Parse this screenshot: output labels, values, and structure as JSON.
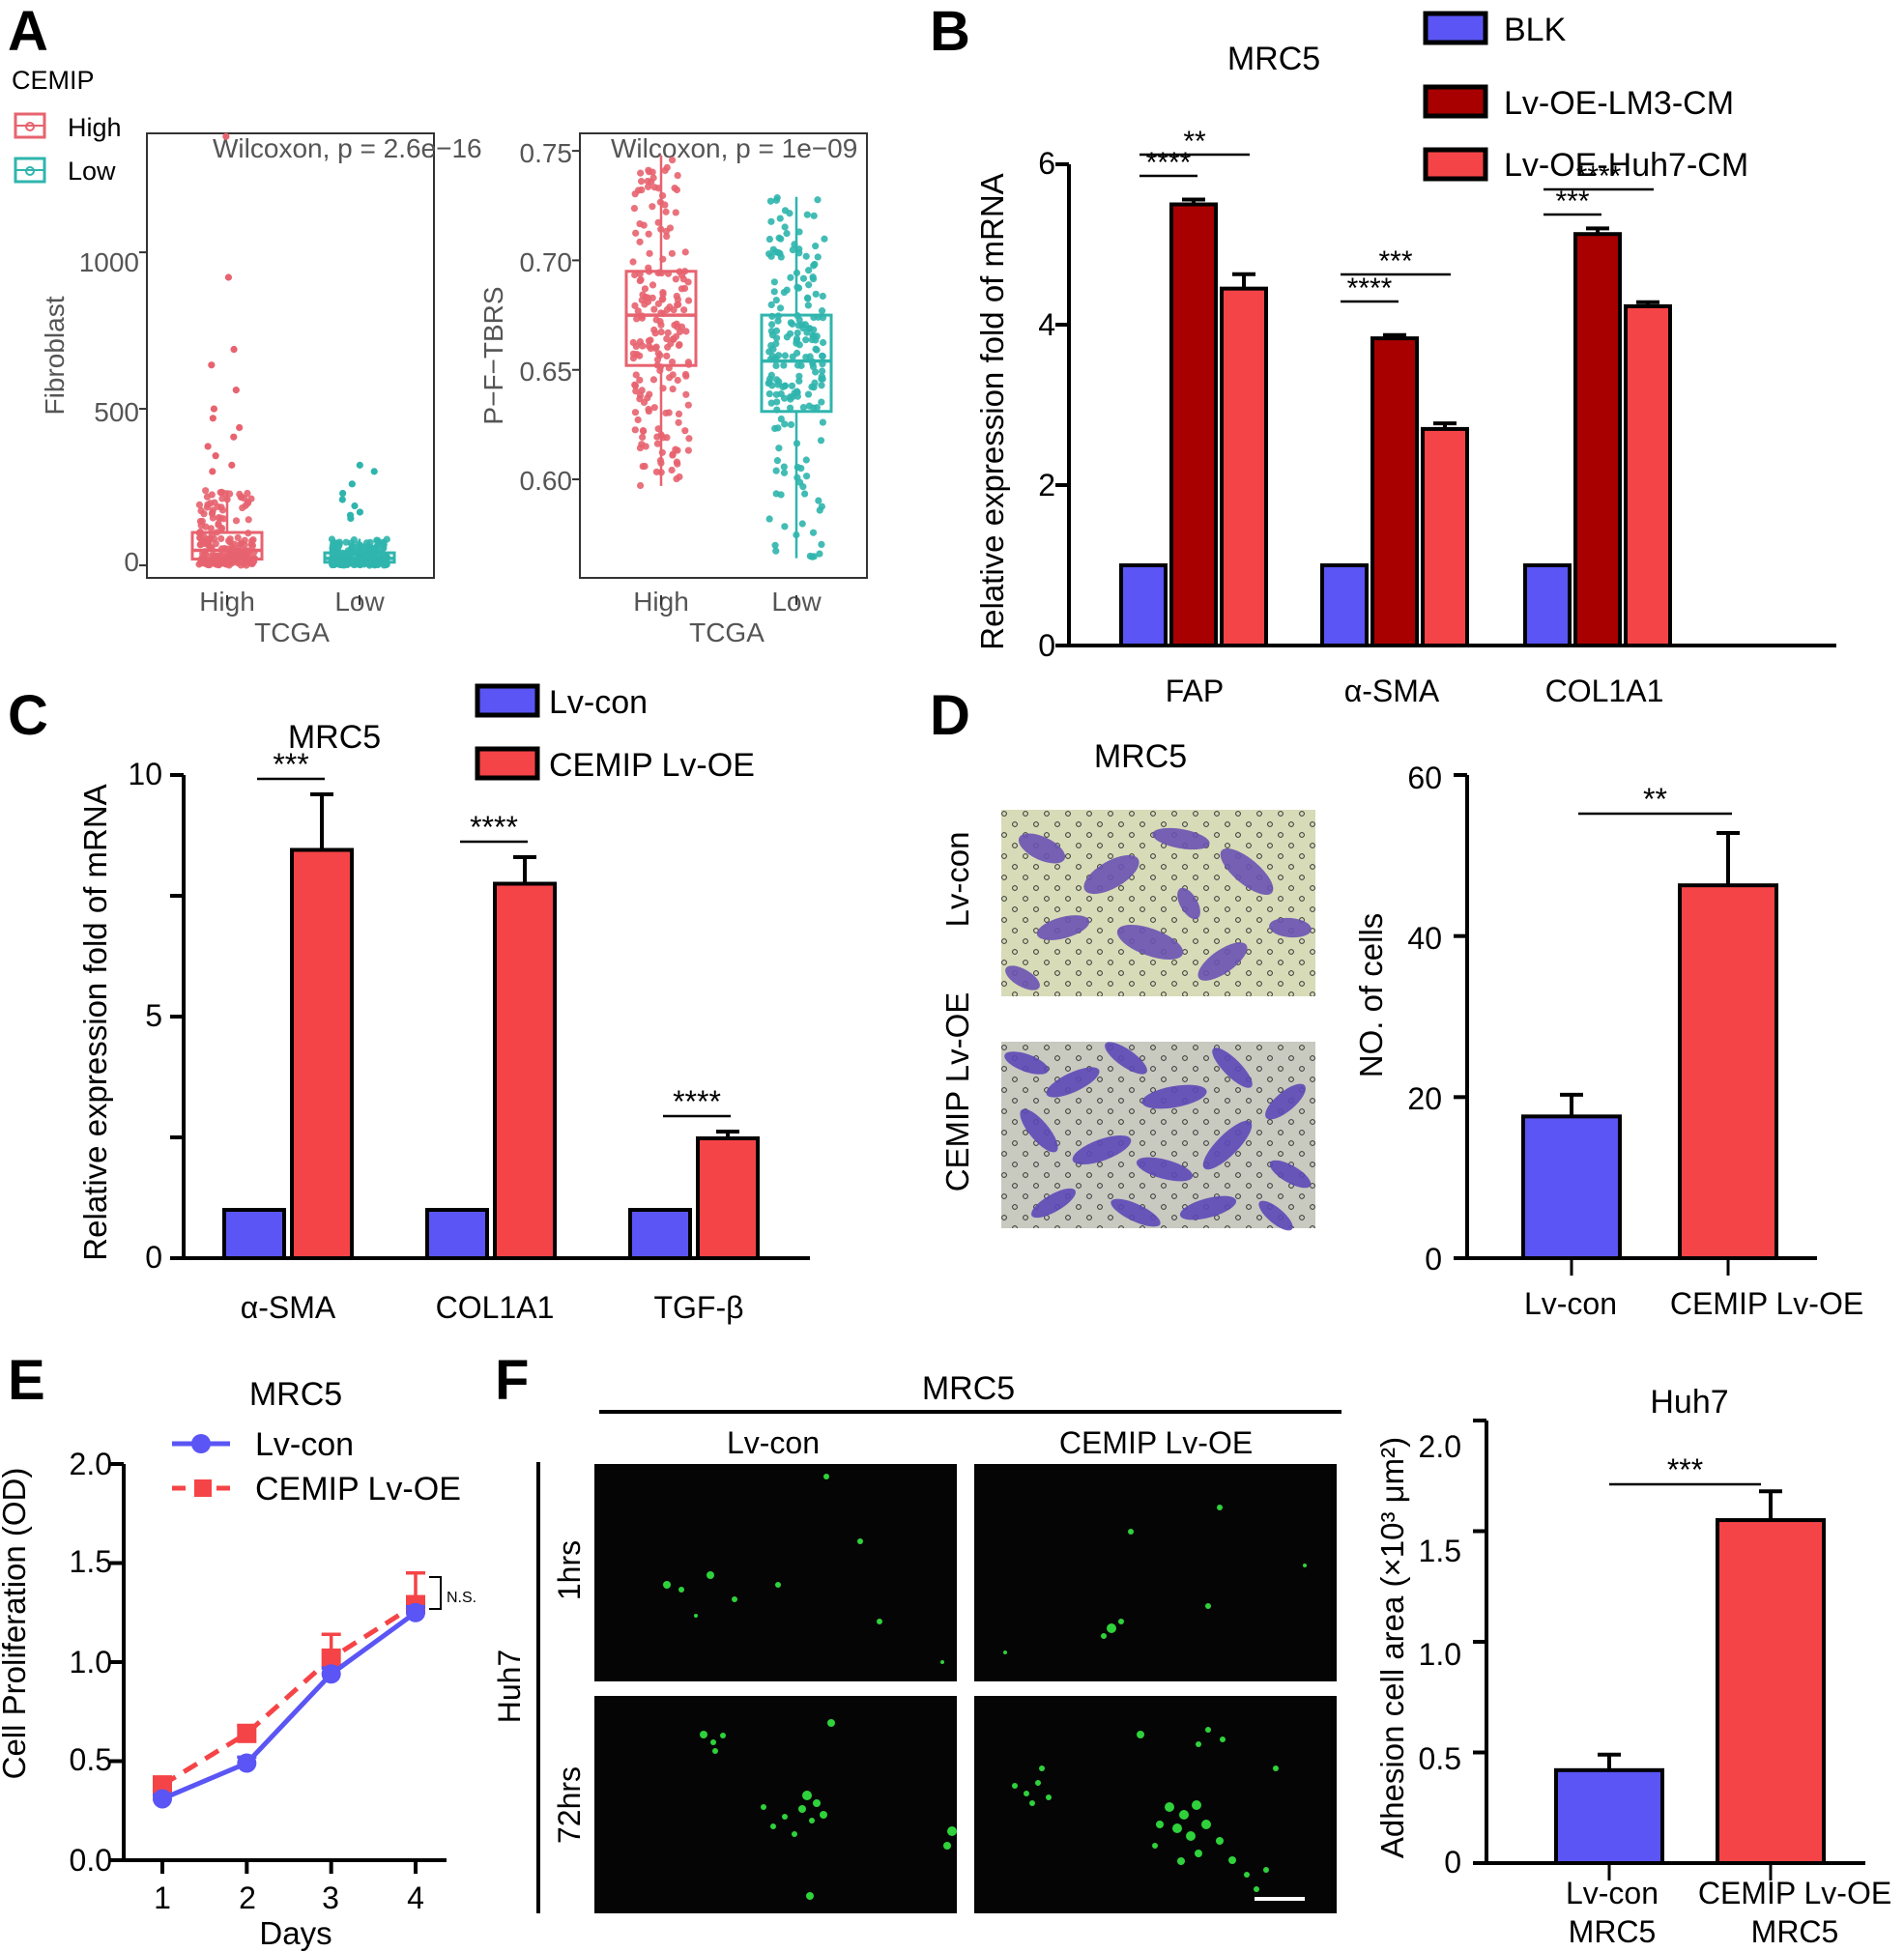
{
  "panels": {
    "a": "A",
    "b": "B",
    "c": "C",
    "d": "D",
    "e": "E",
    "f": "F"
  },
  "colors": {
    "blue": "#5a55f4",
    "darkred": "#a80000",
    "red": "#f54447",
    "pink": "#e7636f",
    "teal": "#2fb5ad",
    "green": "#2fd23b"
  },
  "panel_a": {
    "legend_title": "CEMIP",
    "legend_high": "High",
    "legend_low": "Low"
  },
  "panel_d_images": {
    "title": "MRC5",
    "row1": "Lv-con",
    "row2": "CEMIP Lv-OE"
  },
  "panel_f_images": {
    "title": "MRC5",
    "col1": "Lv-con",
    "col2": "CEMIP Lv-OE",
    "row_group": "Huh7",
    "row1": "1hrs",
    "row2": "72hrs"
  },
  "chart_data": [
    {
      "id": "A1",
      "type": "scatter",
      "subtype": "box-jitter",
      "annotation": "Wilcoxon, p = 2.6e−16",
      "xlabel": "TCGA",
      "ylabel": "Fibroblast",
      "categories": [
        "High",
        "Low"
      ],
      "ylim": [
        -40,
        1380
      ],
      "yticks": [
        "0",
        "500",
        "1000"
      ],
      "groups": [
        {
          "name": "High",
          "box": {
            "q1": 20,
            "median": 48,
            "q3": 105,
            "lower": 0,
            "upper": 240
          },
          "outliers": [
            1370,
            920,
            690,
            640,
            560,
            500,
            470,
            440,
            410,
            380,
            350,
            320,
            300
          ]
        },
        {
          "name": "Low",
          "box": {
            "q1": 10,
            "median": 22,
            "q3": 40,
            "lower": 0,
            "upper": 85
          },
          "outliers": [
            320,
            300,
            260,
            230,
            210,
            190,
            170,
            160,
            150
          ]
        }
      ]
    },
    {
      "id": "A2",
      "type": "scatter",
      "subtype": "box-jitter",
      "annotation": "Wilcoxon, p = 1e−09",
      "xlabel": "TCGA",
      "ylabel": "P−F−TBRS",
      "categories": [
        "High",
        "Low"
      ],
      "ylim": [
        0.555,
        0.758
      ],
      "yticks": [
        "0.60",
        "0.65",
        "0.70",
        "0.75"
      ],
      "groups": [
        {
          "name": "High",
          "box": {
            "q1": 0.652,
            "median": 0.675,
            "q3": 0.695,
            "lower": 0.597,
            "upper": 0.748
          }
        },
        {
          "name": "Low",
          "box": {
            "q1": 0.631,
            "median": 0.654,
            "q3": 0.675,
            "lower": 0.564,
            "upper": 0.729
          }
        }
      ]
    },
    {
      "id": "B",
      "type": "bar",
      "title": "MRC5",
      "ylabel": "Relative expression fold of mRNA",
      "categories": [
        "FAP",
        "α-SMA",
        "COL1A1"
      ],
      "ylim": [
        0,
        6
      ],
      "yticks": [
        "0",
        "2",
        "4",
        "6"
      ],
      "series": [
        {
          "name": "BLK",
          "values": [
            1,
            1,
            1
          ],
          "errors": [
            0,
            0,
            0
          ]
        },
        {
          "name": "Lv-OE-LM3-CM",
          "values": [
            5.5,
            3.83,
            5.13
          ],
          "errors": [
            0.06,
            0.04,
            0.07
          ]
        },
        {
          "name": "Lv-OE-Huh7-CM",
          "values": [
            4.45,
            2.7,
            4.23
          ],
          "errors": [
            0.18,
            0.07,
            0.05
          ]
        }
      ],
      "significance": [
        {
          "group": 0,
          "between": [
            0,
            1
          ],
          "label": "****"
        },
        {
          "group": 0,
          "between": [
            0,
            2
          ],
          "label": "**"
        },
        {
          "group": 1,
          "between": [
            0,
            1
          ],
          "label": "****"
        },
        {
          "group": 1,
          "between": [
            0,
            2
          ],
          "label": "***"
        },
        {
          "group": 2,
          "between": [
            0,
            1
          ],
          "label": "***"
        },
        {
          "group": 2,
          "between": [
            0,
            2
          ],
          "label": "****"
        }
      ]
    },
    {
      "id": "C",
      "type": "bar",
      "title": "MRC5",
      "ylabel": "Relative expression fold of mRNA",
      "categories": [
        "α-SMA",
        "COL1A1",
        "TGF-β"
      ],
      "ylim": [
        0,
        10
      ],
      "yticks": [
        "0",
        "5",
        "10"
      ],
      "series": [
        {
          "name": "Lv-con",
          "values": [
            1,
            1,
            1
          ],
          "errors": [
            0,
            0,
            0
          ]
        },
        {
          "name": "CEMIP Lv-OE",
          "values": [
            8.45,
            7.75,
            2.48
          ],
          "errors": [
            1.15,
            0.55,
            0.14
          ]
        }
      ],
      "significance": [
        {
          "group": 0,
          "label": "***"
        },
        {
          "group": 1,
          "label": "****"
        },
        {
          "group": 2,
          "label": "****"
        }
      ]
    },
    {
      "id": "D",
      "type": "bar",
      "ylabel": "NO. of cells",
      "categories": [
        "Lv-con",
        "CEMIP Lv-OE"
      ],
      "ylim": [
        0,
        60
      ],
      "yticks": [
        "0",
        "20",
        "40",
        "60"
      ],
      "values": [
        17.6,
        46.3
      ],
      "errors": [
        2.7,
        6.5
      ],
      "significance": [
        {
          "between": [
            0,
            1
          ],
          "label": "**"
        }
      ]
    },
    {
      "id": "E",
      "type": "line",
      "title": "MRC5",
      "xlabel": "Days",
      "ylabel": "Cell Proliferation (OD)",
      "x": [
        1,
        2,
        3,
        4
      ],
      "xticks": [
        "1",
        "2",
        "3",
        "4"
      ],
      "ylim": [
        0,
        2.0
      ],
      "yticks": [
        "0.0",
        "0.5",
        "1.0",
        "1.5",
        "2.0"
      ],
      "series": [
        {
          "name": "Lv-con",
          "values": [
            0.31,
            0.49,
            0.94,
            1.25
          ],
          "errors": [
            0.02,
            0.03,
            0.03,
            0.03
          ]
        },
        {
          "name": "CEMIP Lv-OE",
          "values": [
            0.38,
            0.64,
            1.02,
            1.29
          ],
          "errors": [
            0.03,
            0.04,
            0.12,
            0.16
          ]
        }
      ],
      "annotation": "N.S."
    },
    {
      "id": "F",
      "type": "bar",
      "title": "Huh7",
      "ylabel": "Adhesion cell area (×10³ μm²)",
      "categories": [
        "Lv-con",
        "CEMIP Lv-OE"
      ],
      "category_sublabels": [
        "MRC5",
        "MRC5"
      ],
      "ylim": [
        0,
        2.0
      ],
      "yticks": [
        "0",
        "0.5",
        "1.0",
        "1.5",
        "2.0"
      ],
      "values": [
        0.42,
        1.55
      ],
      "errors": [
        0.07,
        0.13
      ],
      "significance": [
        {
          "between": [
            0,
            1
          ],
          "label": "***"
        }
      ]
    }
  ]
}
